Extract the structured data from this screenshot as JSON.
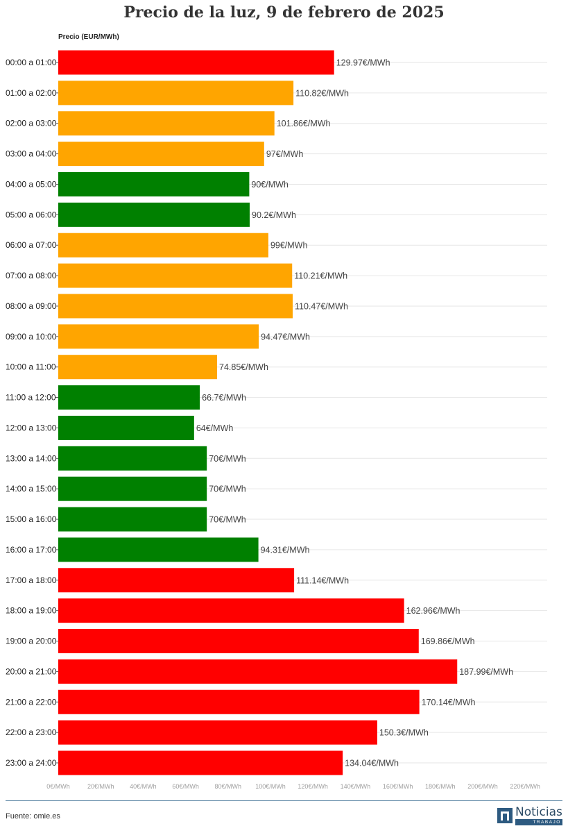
{
  "header": {
    "title": "Precio de la luz, 9 de febrero de 2025"
  },
  "footer": {
    "source": "Fuente: omie.es",
    "logo_name": "Noticias",
    "logo_sub": "TRABAJO"
  },
  "colors": {
    "red": "#ff0000",
    "orange": "#ffa500",
    "green": "#008000",
    "grid": "#e6e6e6"
  },
  "chart_data": {
    "type": "bar",
    "orientation": "horizontal",
    "title": "Precio de la luz, 9 de febrero de 2025",
    "xlabel": "Precio (EUR/MWh)",
    "xlim": [
      0,
      220
    ],
    "x_ticks": [
      0,
      20,
      40,
      60,
      80,
      100,
      120,
      140,
      160,
      180,
      200,
      220
    ],
    "x_tick_labels": [
      "0€/MWh",
      "20€/MWh",
      "40€/MWh",
      "60€/MWh",
      "80€/MWh",
      "100€/MWh",
      "120€/MWh",
      "140€/MWh",
      "160€/MWh",
      "180€/MWh",
      "200€/MWh",
      "220€/MWh"
    ],
    "grid": true,
    "categories": [
      "00:00 a 01:00",
      "01:00 a 02:00",
      "02:00 a 03:00",
      "03:00 a 04:00",
      "04:00 a 05:00",
      "05:00 a 06:00",
      "06:00 a 07:00",
      "07:00 a 08:00",
      "08:00 a 09:00",
      "09:00 a 10:00",
      "10:00 a 11:00",
      "11:00 a 12:00",
      "12:00 a 13:00",
      "13:00 a 14:00",
      "14:00 a 15:00",
      "15:00 a 16:00",
      "16:00 a 17:00",
      "17:00 a 18:00",
      "18:00 a 19:00",
      "19:00 a 20:00",
      "20:00 a 21:00",
      "21:00 a 22:00",
      "22:00 a 23:00",
      "23:00 a 24:00"
    ],
    "values": [
      129.97,
      110.82,
      101.86,
      97,
      90,
      90.2,
      99,
      110.21,
      110.47,
      94.47,
      74.85,
      66.7,
      64,
      70,
      70,
      70,
      94.31,
      111.14,
      162.96,
      169.86,
      187.99,
      170.14,
      150.3,
      134.04
    ],
    "value_labels": [
      "129.97€/MWh",
      "110.82€/MWh",
      "101.86€/MWh",
      "97€/MWh",
      "90€/MWh",
      "90.2€/MWh",
      "99€/MWh",
      "110.21€/MWh",
      "110.47€/MWh",
      "94.47€/MWh",
      "74.85€/MWh",
      "66.7€/MWh",
      "64€/MWh",
      "70€/MWh",
      "70€/MWh",
      "70€/MWh",
      "94.31€/MWh",
      "111.14€/MWh",
      "162.96€/MWh",
      "169.86€/MWh",
      "187.99€/MWh",
      "170.14€/MWh",
      "150.3€/MWh",
      "134.04€/MWh"
    ],
    "bar_colors": [
      "#ff0000",
      "#ffa500",
      "#ffa500",
      "#ffa500",
      "#008000",
      "#008000",
      "#ffa500",
      "#ffa500",
      "#ffa500",
      "#ffa500",
      "#ffa500",
      "#008000",
      "#008000",
      "#008000",
      "#008000",
      "#008000",
      "#008000",
      "#ff0000",
      "#ff0000",
      "#ff0000",
      "#ff0000",
      "#ff0000",
      "#ff0000",
      "#ff0000"
    ]
  }
}
